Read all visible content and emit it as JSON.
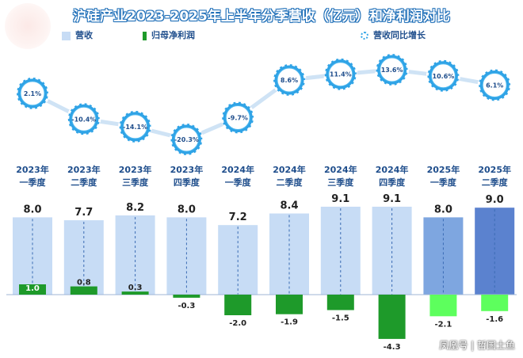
{
  "page": {
    "title": "沪硅产业2023-2025年上半年分季营收（亿元）和净利润对比",
    "watermark": "凤凰号 | 哲国土鱼"
  },
  "legend": {
    "revenue": "营收",
    "net_profit": "归母净利润",
    "yoy": "营收同比增长"
  },
  "colors": {
    "revenue_light": "#c7dcf5",
    "revenue_mid": "#7ea6e0",
    "revenue_dark": "#5b82cf",
    "profit_dark": "#1e9a2a",
    "profit_light": "#5dff5d",
    "growth_line": "#cfe3f5",
    "growth_badge": "#2fa3e6",
    "quarter_text": "#1f4e8c"
  },
  "chart_data": {
    "type": "bar",
    "categories": [
      "2023年一季度",
      "2023年二季度",
      "2023年三季度",
      "2023年四季度",
      "2024年一季度",
      "2024年二季度",
      "2024年三季度",
      "2024年四季度",
      "2025年一季度",
      "2025年二季度"
    ],
    "category_lines": [
      [
        "2023年",
        "一季度"
      ],
      [
        "2023年",
        "二季度"
      ],
      [
        "2023年",
        "三季度"
      ],
      [
        "2023年",
        "四季度"
      ],
      [
        "2024年",
        "一季度"
      ],
      [
        "2024年",
        "二季度"
      ],
      [
        "2024年",
        "三季度"
      ],
      [
        "2024年",
        "四季度"
      ],
      [
        "2025年",
        "一季度"
      ],
      [
        "2025年",
        "二季度"
      ]
    ],
    "series": [
      {
        "name": "营收",
        "values": [
          8.0,
          7.7,
          8.2,
          8.0,
          7.2,
          8.4,
          9.1,
          9.1,
          8.0,
          9.0
        ]
      },
      {
        "name": "归母净利润",
        "values": [
          1.0,
          0.8,
          0.3,
          -0.3,
          -2.0,
          -1.9,
          -1.5,
          -4.3,
          -2.1,
          -1.6
        ]
      },
      {
        "name": "营收同比增长",
        "values": [
          2.1,
          -10.4,
          -14.1,
          -20.3,
          -9.7,
          8.6,
          11.4,
          13.6,
          10.6,
          6.1
        ],
        "unit": "%"
      }
    ],
    "value_labels": {
      "revenue": [
        "8.0",
        "7.7",
        "8.2",
        "8.0",
        "7.2",
        "8.4",
        "9.1",
        "9.1",
        "8.0",
        "9.0"
      ],
      "profit": [
        "1.0",
        "0.8",
        "0.3",
        "-0.3",
        "-2.0",
        "-1.9",
        "-1.5",
        "-4.3",
        "-2.1",
        "-1.6"
      ],
      "yoy": [
        "2.1%",
        "-10.4%",
        "-14.1%",
        "-20.3%",
        "-9.7%",
        "8.6%",
        "11.4%",
        "13.6%",
        "10.6%",
        "6.1%"
      ]
    },
    "grid": false,
    "legend_position": "top"
  }
}
